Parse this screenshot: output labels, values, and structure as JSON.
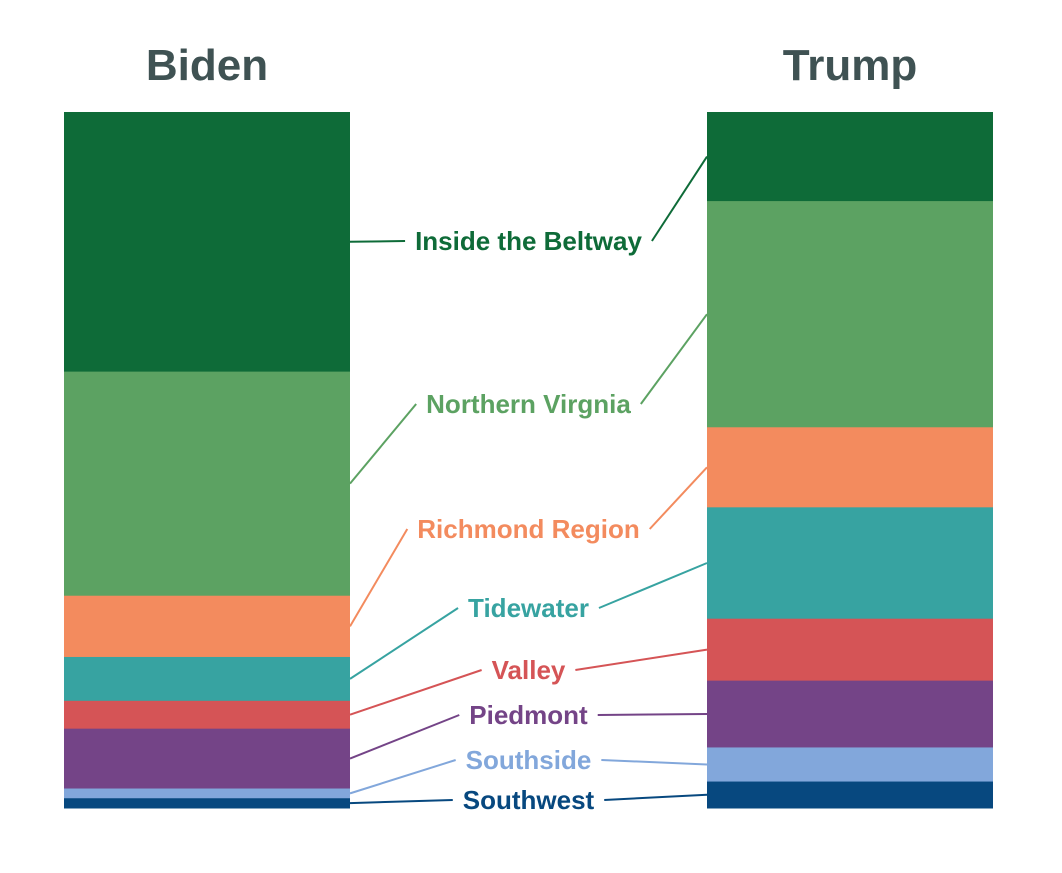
{
  "chart_data": {
    "type": "bar",
    "stacked": true,
    "normalized": true,
    "categories": [
      "Biden",
      "Trump"
    ],
    "series": [
      {
        "name": "Inside the Beltway",
        "color": "#0e6b38",
        "values": [
          37.3,
          12.8
        ]
      },
      {
        "name": "Northern Virgnia",
        "color": "#5ca262",
        "values": [
          32.2,
          32.5
        ]
      },
      {
        "name": "Richmond Region",
        "color": "#f38b5e",
        "values": [
          8.8,
          11.5
        ]
      },
      {
        "name": "Tidewater",
        "color": "#37a3a1",
        "values": [
          6.3,
          16.0
        ]
      },
      {
        "name": "Valley",
        "color": "#d55456",
        "values": [
          4.0,
          8.9
        ]
      },
      {
        "name": "Piedmont",
        "color": "#744487",
        "values": [
          8.6,
          9.6
        ]
      },
      {
        "name": "Southside",
        "color": "#82a7db",
        "values": [
          1.4,
          4.9
        ]
      },
      {
        "name": "Southwest",
        "color": "#07487f",
        "values": [
          1.4,
          3.8
        ]
      }
    ]
  }
}
